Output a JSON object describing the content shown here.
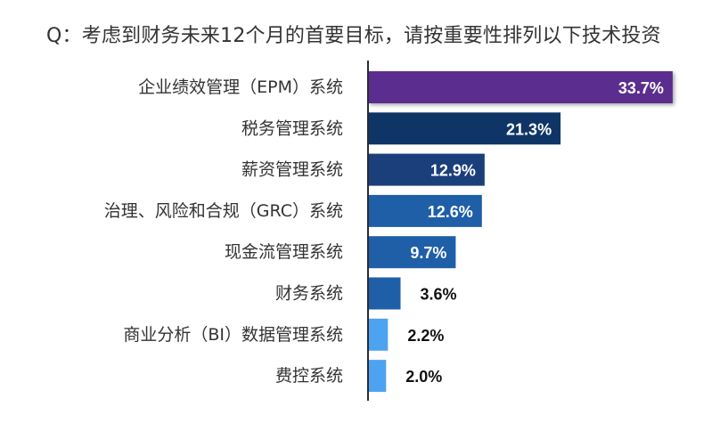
{
  "chart_data": {
    "type": "bar",
    "orientation": "horizontal",
    "title": "Q：考虑到财务未来12个月的首要目标，请按重要性排列以下技术投资",
    "categories": [
      "企业绩效管理（EPM）系统",
      "税务管理系统",
      "薪资管理系统",
      "治理、风险和合规（GRC）系统",
      "现金流管理系统",
      "财务系统",
      "商业分析（BI）数据管理系统",
      "费控系统"
    ],
    "values": [
      33.7,
      21.3,
      12.9,
      12.6,
      9.7,
      3.6,
      2.2,
      2.0
    ],
    "value_labels": [
      "33.7%",
      "21.3%",
      "12.9%",
      "12.6%",
      "9.7%",
      "3.6%",
      "2.2%",
      "2.0%"
    ],
    "bar_colors": [
      "#5b2d8e",
      "#0f3566",
      "#1a3f7a",
      "#1f5fa8",
      "#1f5fa8",
      "#1f5fa8",
      "#4ea3f0",
      "#4ea3f0"
    ],
    "xlim": [
      0,
      34.5
    ],
    "grid": false,
    "legend": "none"
  }
}
